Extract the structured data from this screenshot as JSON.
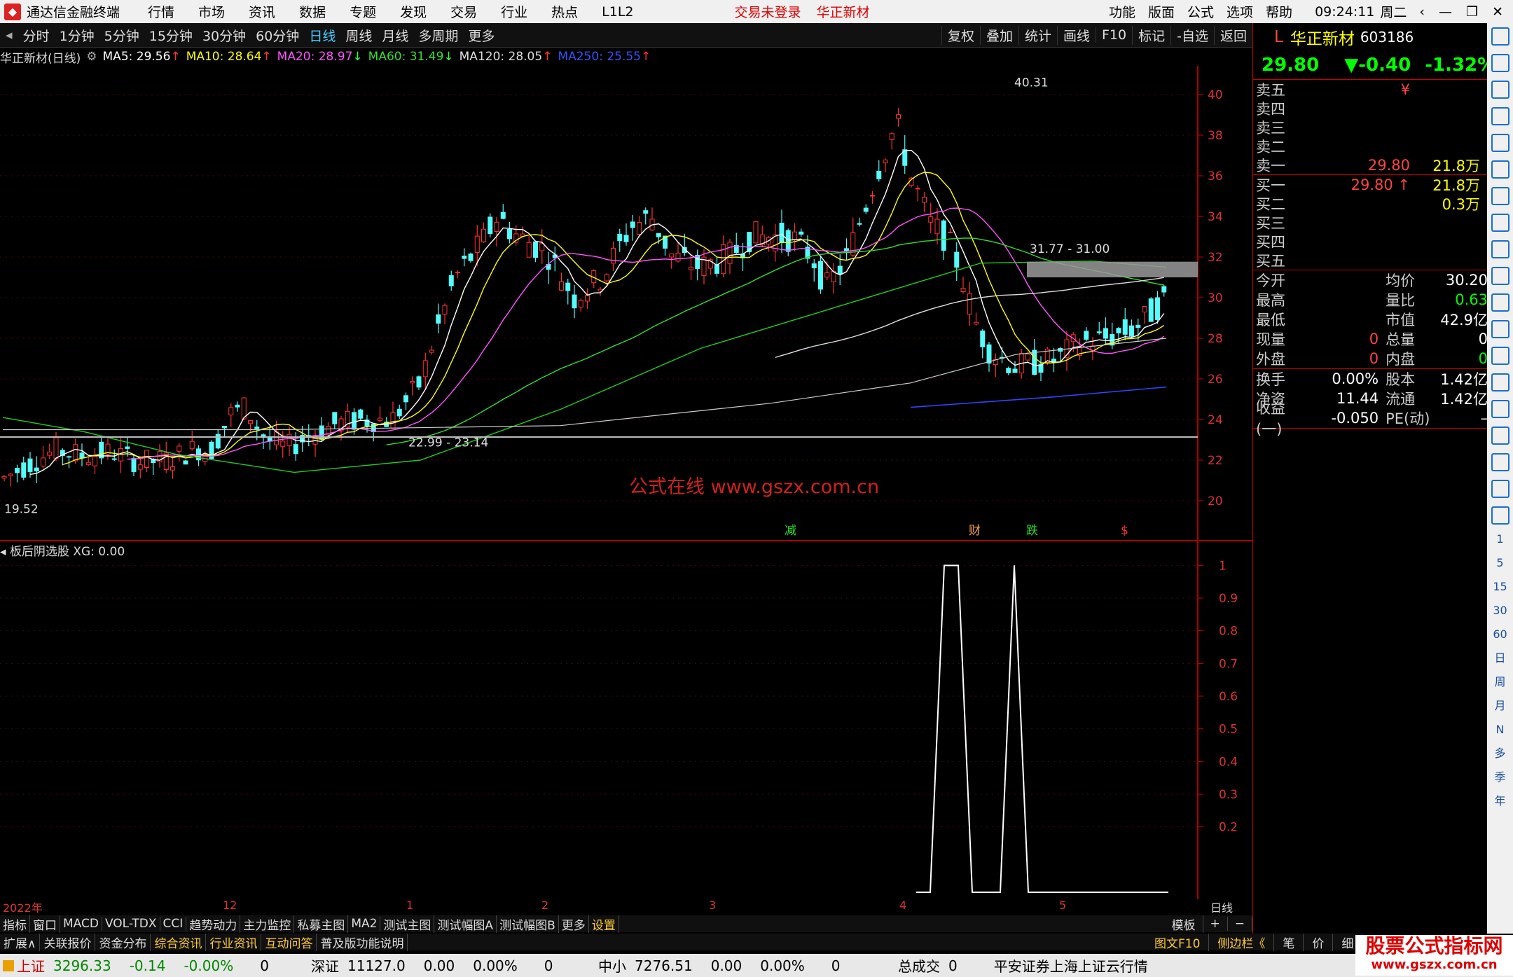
{
  "titlebar": {
    "app": "通达信金融终端",
    "menu": [
      "行情",
      "市场",
      "资讯",
      "数据",
      "专题",
      "发现",
      "交易",
      "行业",
      "热点",
      "L1L2"
    ],
    "notice_login": "交易未登录",
    "notice_stock": "华正新材",
    "right_menu": [
      "功能",
      "版面",
      "公式",
      "选项",
      "帮助"
    ],
    "time": "09:24:11",
    "weekday": "周二"
  },
  "periodbar": {
    "items": [
      "分时",
      "1分钟",
      "5分钟",
      "15分钟",
      "30分钟",
      "60分钟",
      "日线",
      "周线",
      "月线",
      "多周期",
      "更多"
    ],
    "selected": "日线",
    "right": [
      "复权",
      "叠加",
      "统计",
      "画线",
      "F10",
      "标记",
      "-自选",
      "返回"
    ]
  },
  "ma_legend": {
    "name": "华正新材(日线)",
    "items": [
      {
        "label": "MA5: 29.56",
        "color": "#ffffff",
        "arrow": "↑"
      },
      {
        "label": "MA10: 28.64",
        "color": "#ffff00",
        "arrow": "↑"
      },
      {
        "label": "MA20: 28.97",
        "color": "#ff55ff",
        "arrow": "↓"
      },
      {
        "label": "MA60: 31.49",
        "color": "#33dd33",
        "arrow": "↓"
      },
      {
        "label": "MA120: 28.05",
        "color": "#dddddd",
        "arrow": "↑"
      },
      {
        "label": "MA250: 25.55",
        "color": "#3355ff",
        "arrow": "↑"
      }
    ]
  },
  "chart_data": [
    {
      "type": "candlestick",
      "title": "华正新材(日线)",
      "ylim": [
        19.0,
        41.0
      ],
      "yticks": [
        20.0,
        22.0,
        24.0,
        26.0,
        28.0,
        30.0,
        32.0,
        34.0,
        36.0,
        38.0,
        40.0
      ],
      "xlabels": [
        "2022年",
        "12",
        "1",
        "2",
        "3",
        "4",
        "5"
      ],
      "annotations": [
        "40.31",
        "19.52",
        "22.99 - 23.14",
        "31.77 - 31.00"
      ],
      "markers": [
        "减",
        "财",
        "跌",
        "$"
      ],
      "watermark_text": "公式在线 www.gszx.com.cn",
      "horizontal_line": 23.14
    },
    {
      "type": "line",
      "title": "板后阴选股 XG: 0.00",
      "ylim": [
        0,
        1.05
      ],
      "yticks": [
        0.2,
        0.3,
        0.4,
        0.5,
        0.6,
        0.7,
        0.8,
        0.9,
        1.0
      ],
      "series": [
        {
          "name": "XG",
          "values": [
            0,
            0,
            1,
            1,
            0,
            0,
            0,
            1,
            0,
            0,
            0,
            0,
            0,
            0,
            0,
            0,
            0,
            0,
            0
          ]
        }
      ]
    }
  ],
  "quote": {
    "name": "华正新材",
    "code": "603186",
    "price": "29.80",
    "change": "▼-0.40",
    "pct": "-1.32%",
    "sell": [
      {
        "label": "卖五",
        "price": "¥",
        "vol": ""
      },
      {
        "label": "卖四",
        "price": "",
        "vol": ""
      },
      {
        "label": "卖三",
        "price": "",
        "vol": ""
      },
      {
        "label": "卖二",
        "price": "",
        "vol": ""
      },
      {
        "label": "卖一",
        "price": "29.80",
        "vol": "21.8万"
      }
    ],
    "buy": [
      {
        "label": "买一",
        "price": "29.80 ↑",
        "vol": "21.8万"
      },
      {
        "label": "买二",
        "price": "",
        "vol": "0.3万"
      },
      {
        "label": "买三",
        "price": "",
        "vol": ""
      },
      {
        "label": "买四",
        "price": "",
        "vol": ""
      },
      {
        "label": "买五",
        "price": "",
        "vol": ""
      }
    ],
    "stats": [
      {
        "k": "今开",
        "v": "",
        "k2": "均价",
        "v2": "30.20"
      },
      {
        "k": "最高",
        "v": "",
        "k2": "量比",
        "v2": "0.63"
      },
      {
        "k": "最低",
        "v": "",
        "k2": "市值",
        "v2": "42.9亿"
      },
      {
        "k": "现量",
        "v": "0",
        "k2": "总量",
        "v2": "0"
      },
      {
        "k": "外盘",
        "v": "0",
        "k2": "内盘",
        "v2": "0"
      }
    ],
    "stats2": [
      {
        "k": "换手",
        "v": "0.00%",
        "k2": "股本",
        "v2": "1.42亿"
      },
      {
        "k": "净资",
        "v": "11.44",
        "k2": "流通",
        "v2": "1.42亿"
      },
      {
        "k": "收益(一)",
        "v": "-0.050",
        "k2": "PE(动)",
        "v2": "–"
      }
    ]
  },
  "sidebar_labels": [
    "1",
    "5",
    "15",
    "30",
    "60",
    "日",
    "周",
    "月",
    "N",
    "多",
    "季",
    "年"
  ],
  "datebar_right": "日线",
  "tabs": [
    "指标",
    "窗口",
    "MACD",
    "VOL-TDX",
    "CCI",
    "趋势动力",
    "主力监控",
    "私募主图",
    "MA2",
    "测试主图",
    "测试幅图A",
    "测试幅图B",
    "更多",
    "设置"
  ],
  "tabs_right": [
    "模板",
    "+",
    "−"
  ],
  "tabs2": [
    "扩展∧",
    "关联报价",
    "资金分布",
    "综合资讯",
    "行业资讯",
    "互动问答",
    "普及版功能说明"
  ],
  "tabs2_right": [
    "图文F10",
    "侧边栏《",
    "笔",
    "价",
    "细"
  ],
  "statusbar": {
    "items": [
      {
        "name": "上证",
        "val": "3296.33",
        "chg": "-0.14",
        "pct": "-0.00%",
        "vol": "0"
      },
      {
        "name": "深证",
        "val": "11127.0",
        "chg": "0.00",
        "pct": "0.00%",
        "vol": "0"
      },
      {
        "name": "中小",
        "val": "7276.51",
        "chg": "0.00",
        "pct": "0.00%",
        "vol": "0"
      }
    ],
    "total_label": "总成交",
    "total_val": "0",
    "broker": "平安证券上海上证云行情"
  },
  "watermark": {
    "title": "股票公式指标网",
    "url": "www.gszx.com.cn"
  }
}
